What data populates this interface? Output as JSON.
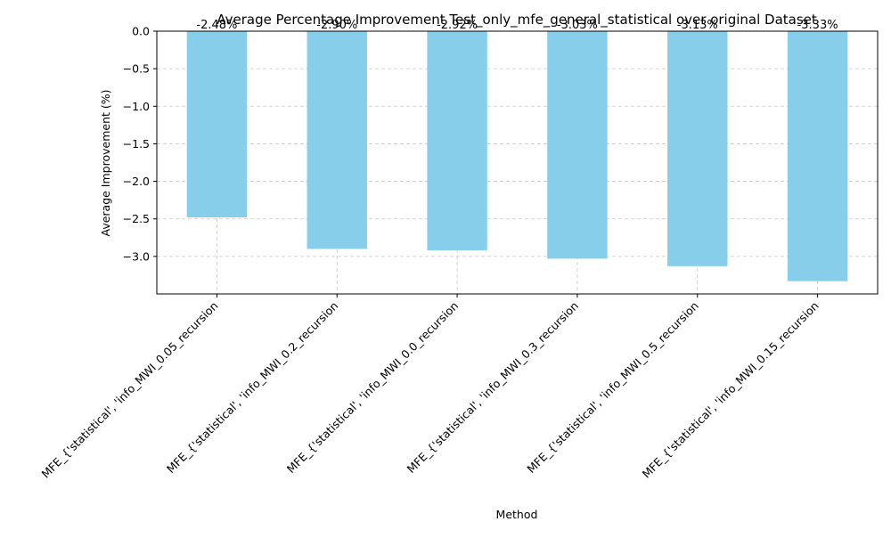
{
  "chart_data": {
    "type": "bar",
    "title": "Average Percentage Improvement Test_only_mfe_general_statistical over original Dataset",
    "xlabel": "Method",
    "ylabel": "Average Improvement (%)",
    "categories": [
      "MFE_{'statistical', 'info_MWI_0.05_recursion",
      "MFE_{'statistical', 'info_MWI_0.2_recursion",
      "MFE_{'statistical', 'info_MWI_0.0_recursion",
      "MFE_{'statistical', 'info_MWI_0.3_recursion",
      "MFE_{'statistical', 'info_MWI_0.5_recursion",
      "MFE_{'statistical', 'info_MWI_0.15_recursion"
    ],
    "values": [
      -2.48,
      -2.9,
      -2.92,
      -3.03,
      -3.13,
      -3.33
    ],
    "data_labels": [
      "-2.48%",
      "-2.90%",
      "-2.92%",
      "-3.03%",
      "-3.13%",
      "-3.33%"
    ],
    "ylim": [
      -3.5,
      0.0
    ],
    "yticks": [
      0.0,
      -0.5,
      -1.0,
      -1.5,
      -2.0,
      -2.5,
      -3.0
    ],
    "ytick_labels": [
      "0.0",
      "−0.5",
      "−1.0",
      "−1.5",
      "−2.0",
      "−2.5",
      "−3.0"
    ],
    "bar_color": "#87ceeb",
    "grid": true
  }
}
